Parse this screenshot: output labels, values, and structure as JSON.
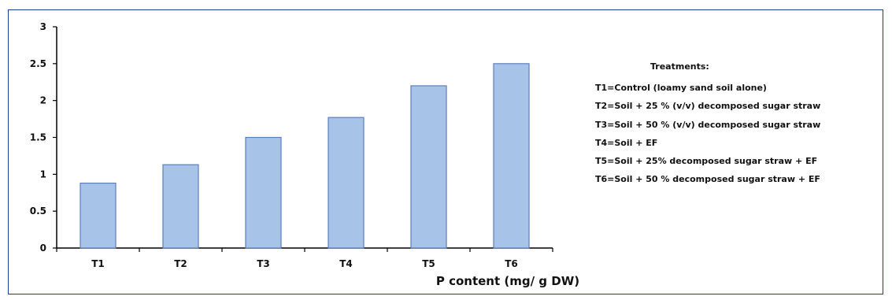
{
  "chart_data": {
    "type": "bar",
    "categories": [
      "T1",
      "T2",
      "T3",
      "T4",
      "T5",
      "T6"
    ],
    "values": [
      0.88,
      1.13,
      1.5,
      1.77,
      2.2,
      2.5
    ],
    "xlabel": "P content (mg/ g DW)",
    "ylabel": "",
    "ylim": [
      0,
      3
    ],
    "yticks": [
      "0",
      "0.5",
      "1",
      "1.5",
      "2",
      "2.5",
      "3"
    ],
    "grid": false,
    "bar_color": "#a7c4e8",
    "bar_edge_color": "#5b7fb8",
    "legend": {
      "title": "Treatments:",
      "items": [
        "T1=Control (loamy sand soil alone)",
        "T2=Soil + 25 % (v/v) decomposed sugar straw",
        "T3=Soil + 50 % (v/v) decomposed sugar straw",
        "T4=Soil + EF",
        "T5=Soil + 25% decomposed sugar straw + EF",
        "T6=Soil + 50 % decomposed sugar straw + EF"
      ]
    }
  }
}
